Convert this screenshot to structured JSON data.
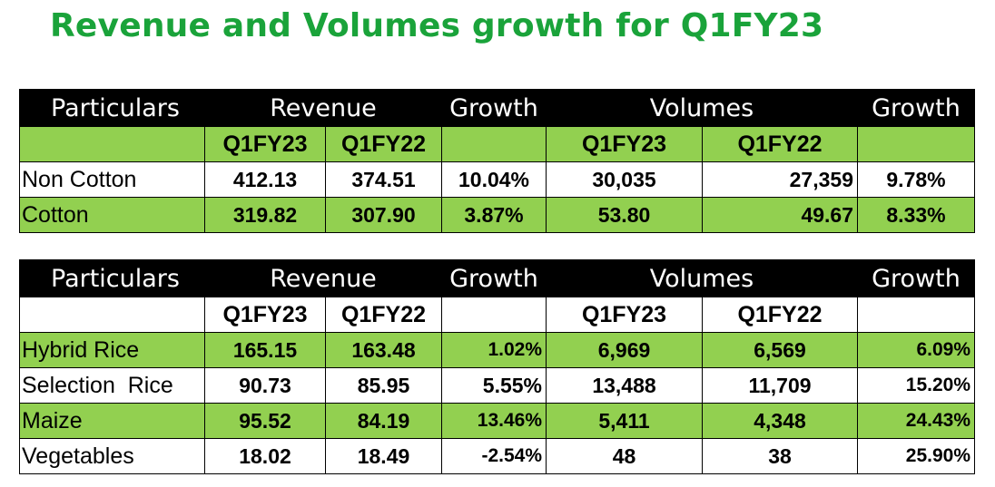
{
  "title": "Revenue and Volumes growth for Q1FY23",
  "headers": {
    "particulars": "Particulars",
    "revenue": "Revenue",
    "growth": "Growth",
    "volumes": "Volumes",
    "q1fy23": "Q1FY23",
    "q1fy22": "Q1FY22"
  },
  "colors": {
    "title": "#1aa33a",
    "header_bg": "#000000",
    "green_row": "#92d050"
  },
  "table1": [
    {
      "name": "Non Cotton",
      "rev23": "412.13",
      "rev22": "374.51",
      "rev_growth": "10.04%",
      "vol23": "30,035",
      "vol22": "27,359",
      "vol_growth": "9.78%"
    },
    {
      "name": "Cotton",
      "rev23": "319.82",
      "rev22": "307.90",
      "rev_growth": "3.87%",
      "vol23": "53.80",
      "vol22": "49.67",
      "vol_growth": "8.33%"
    }
  ],
  "table2": [
    {
      "name": "Hybrid Rice",
      "rev23": "165.15",
      "rev22": "163.48",
      "rev_growth": "1.02%",
      "vol23": "6,969",
      "vol22": "6,569",
      "vol_growth": "6.09%"
    },
    {
      "name": "Selection  Rice",
      "rev23": "90.73",
      "rev22": "85.95",
      "rev_growth": "5.55%",
      "vol23": "13,488",
      "vol22": "11,709",
      "vol_growth": "15.20%"
    },
    {
      "name": "Maize",
      "rev23": "95.52",
      "rev22": "84.19",
      "rev_growth": "13.46%",
      "vol23": "5,411",
      "vol22": "4,348",
      "vol_growth": "24.43%"
    },
    {
      "name": "Vegetables",
      "rev23": "18.02",
      "rev22": "18.49",
      "rev_growth": "-2.54%",
      "vol23": "48",
      "vol22": "38",
      "vol_growth": "25.90%"
    }
  ]
}
